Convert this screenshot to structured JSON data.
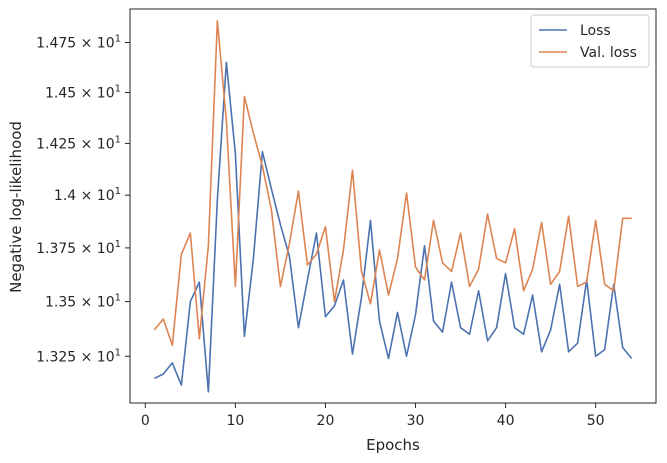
{
  "chart_data": {
    "type": "line",
    "title": "",
    "xlabel": "Epochs",
    "ylabel": "Negative log-likelihood",
    "xlim": [
      -1.7,
      56.7
    ],
    "ylim": [
      13.04,
      14.92
    ],
    "y_scale": "log",
    "grid": false,
    "legend_position": "top-right",
    "x_ticks": [
      0,
      10,
      20,
      30,
      40,
      50
    ],
    "x_tick_labels": [
      "0",
      "10",
      "20",
      "30",
      "40",
      "50"
    ],
    "y_ticks": [
      {
        "value": 13.25,
        "mantissa": "1.325",
        "times": "×",
        "base": "10",
        "exp": "1"
      },
      {
        "value": 13.5,
        "mantissa": "1.35",
        "times": "×",
        "base": "10",
        "exp": "1"
      },
      {
        "value": 13.75,
        "mantissa": "1.375",
        "times": "×",
        "base": "10",
        "exp": "1"
      },
      {
        "value": 14.0,
        "mantissa": "1.4",
        "times": "×",
        "base": "10",
        "exp": "1"
      },
      {
        "value": 14.25,
        "mantissa": "1.425",
        "times": "×",
        "base": "10",
        "exp": "1"
      },
      {
        "value": 14.5,
        "mantissa": "1.45",
        "times": "×",
        "base": "10",
        "exp": "1"
      },
      {
        "value": 14.75,
        "mantissa": "1.475",
        "times": "×",
        "base": "10",
        "exp": "1"
      }
    ],
    "x": [
      1,
      2,
      3,
      4,
      5,
      6,
      7,
      8,
      9,
      10,
      11,
      12,
      13,
      14,
      15,
      16,
      17,
      18,
      19,
      20,
      21,
      22,
      23,
      24,
      25,
      26,
      27,
      28,
      29,
      30,
      31,
      32,
      33,
      34,
      35,
      36,
      37,
      38,
      39,
      40,
      41,
      42,
      43,
      44,
      45,
      46,
      47,
      48,
      49,
      50,
      51,
      52,
      53,
      54
    ],
    "series": [
      {
        "name": "Loss",
        "color": "#4c72b0",
        "values": [
          13.15,
          13.17,
          13.22,
          13.12,
          13.5,
          13.59,
          13.09,
          13.98,
          14.65,
          14.2,
          13.34,
          13.7,
          14.21,
          14.03,
          13.86,
          13.71,
          13.38,
          13.6,
          13.82,
          13.43,
          13.48,
          13.6,
          13.26,
          13.52,
          13.88,
          13.41,
          13.24,
          13.45,
          13.25,
          13.44,
          13.76,
          13.41,
          13.36,
          13.59,
          13.38,
          13.35,
          13.55,
          13.32,
          13.38,
          13.63,
          13.38,
          13.35,
          13.53,
          13.27,
          13.37,
          13.58,
          13.27,
          13.31,
          13.6,
          13.25,
          13.28,
          13.58,
          13.29,
          13.24
        ]
      },
      {
        "name": "Val. loss",
        "color": "#dd8452",
        "values": [
          13.37,
          13.42,
          13.3,
          13.72,
          13.82,
          13.33,
          13.76,
          14.86,
          14.36,
          13.57,
          14.48,
          14.3,
          14.14,
          13.93,
          13.57,
          13.77,
          14.02,
          13.67,
          13.72,
          13.85,
          13.5,
          13.74,
          14.12,
          13.64,
          13.49,
          13.74,
          13.53,
          13.7,
          14.01,
          13.66,
          13.6,
          13.88,
          13.68,
          13.64,
          13.82,
          13.57,
          13.65,
          13.91,
          13.7,
          13.68,
          13.84,
          13.55,
          13.65,
          13.87,
          13.58,
          13.64,
          13.9,
          13.57,
          13.59,
          13.88,
          13.58,
          13.55,
          13.89,
          13.89
        ]
      }
    ]
  }
}
